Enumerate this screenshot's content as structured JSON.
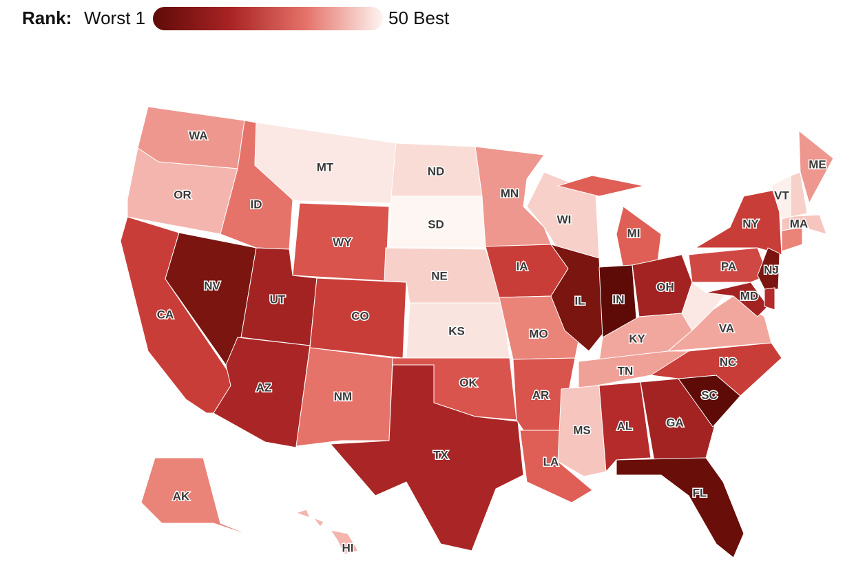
{
  "legend": {
    "title": "Rank:",
    "low": "Worst 1",
    "high": "50 Best",
    "colors": [
      "#5e0b08",
      "#a82323",
      "#e5736a",
      "#fdf4f1"
    ]
  },
  "states": [
    {
      "label": "WA",
      "color": "#ee978e"
    },
    {
      "label": "OR",
      "color": "#f3b5ad"
    },
    {
      "label": "CA",
      "color": "#c93d38"
    },
    {
      "label": "NV",
      "color": "#7a1510"
    },
    {
      "label": "ID",
      "color": "#e5736a"
    },
    {
      "label": "MT",
      "color": "#fbe7e3"
    },
    {
      "label": "WY",
      "color": "#d9544d"
    },
    {
      "label": "UT",
      "color": "#a32323"
    },
    {
      "label": "CO",
      "color": "#c93d38"
    },
    {
      "label": "AZ",
      "color": "#aa2626"
    },
    {
      "label": "NM",
      "color": "#e5736a"
    },
    {
      "label": "ND",
      "color": "#f9dcd6"
    },
    {
      "label": "SD",
      "color": "#fdf6f3"
    },
    {
      "label": "NE",
      "color": "#f7d0c9"
    },
    {
      "label": "KS",
      "color": "#fae4df"
    },
    {
      "label": "OK",
      "color": "#d9544d"
    },
    {
      "label": "TX",
      "color": "#aa2626"
    },
    {
      "label": "MN",
      "color": "#ee978e"
    },
    {
      "label": "IA",
      "color": "#c93d38"
    },
    {
      "label": "MO",
      "color": "#ea8378"
    },
    {
      "label": "AR",
      "color": "#d9544d"
    },
    {
      "label": "LA",
      "color": "#df5f57"
    },
    {
      "label": "WI",
      "color": "#f7d0c9"
    },
    {
      "label": "IL",
      "color": "#7a1510"
    },
    {
      "label": "MI",
      "color": "#df5f57"
    },
    {
      "label": "IN",
      "color": "#5e0b08"
    },
    {
      "label": "OH",
      "color": "#a32323"
    },
    {
      "label": "KY",
      "color": "#f2a79e"
    },
    {
      "label": "TN",
      "color": "#f0a197"
    },
    {
      "label": "MS",
      "color": "#f6c5be"
    },
    {
      "label": "AL",
      "color": "#b52b2b"
    },
    {
      "label": "GA",
      "color": "#a32323"
    },
    {
      "label": "FL",
      "color": "#6a0e0a"
    },
    {
      "label": "SC",
      "color": "#5e0b08"
    },
    {
      "label": "NC",
      "color": "#c93d38"
    },
    {
      "label": "VA",
      "color": "#f2a79e"
    },
    {
      "color": "#fbe7e3"
    },
    {
      "label": "PA",
      "color": "#d04844"
    },
    {
      "label": "NY",
      "color": "#c93d38"
    },
    {
      "label": "NJ",
      "color": "#7a1510"
    },
    {
      "label": "MD",
      "color": "#a32323"
    },
    {
      "color": "#b52b2b"
    },
    {
      "color": "#ea8378"
    },
    {
      "label": "MA",
      "color": "#f6c5be"
    },
    {
      "color": "#f7d0c9"
    },
    {
      "label": "VT",
      "color": "#fdf0ec"
    },
    {
      "label": "ME",
      "color": "#ee978e"
    },
    {
      "label": "AK",
      "color": "#ea8378"
    },
    {
      "label": "HI",
      "color": "#f3b5ad"
    }
  ]
}
